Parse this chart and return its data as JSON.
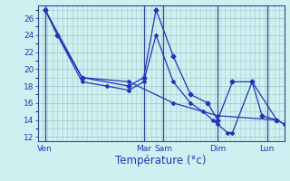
{
  "background_color": "#cff0f0",
  "grid_color": "#a0cccc",
  "line_color": "#2233bb",
  "ylim": [
    11.5,
    27.5
  ],
  "xlim": [
    0,
    100
  ],
  "yticks": [
    12,
    14,
    16,
    18,
    20,
    22,
    24,
    26
  ],
  "xlabel": "Température (°c)",
  "xlabel_fontsize": 8.5,
  "tick_fontsize": 6.5,
  "day_labels": [
    "Ven",
    "Mar",
    "Sam",
    "Dim",
    "Lun"
  ],
  "day_x": [
    3,
    43,
    51,
    73,
    93
  ],
  "vline_x": [
    3,
    43,
    51,
    73,
    93
  ],
  "series1_x": [
    3,
    8,
    18,
    37,
    43,
    48,
    55,
    62,
    69,
    73,
    79,
    87,
    91,
    97
  ],
  "series1_y": [
    27.0,
    24.0,
    19.0,
    18.0,
    19.0,
    27.0,
    21.5,
    17.0,
    16.0,
    14.0,
    18.5,
    18.5,
    14.5,
    14.0
  ],
  "series2_x": [
    3,
    8,
    18,
    28,
    37,
    43,
    48,
    55,
    62,
    67,
    71,
    73,
    77,
    79,
    87,
    97,
    100
  ],
  "series2_y": [
    27.0,
    24.0,
    18.5,
    18.0,
    17.5,
    18.5,
    24.0,
    18.5,
    16.0,
    15.0,
    14.0,
    13.5,
    12.5,
    12.5,
    18.5,
    14.0,
    13.5
  ],
  "series3_x": [
    3,
    18,
    37,
    55,
    73,
    97,
    100
  ],
  "series3_y": [
    27.0,
    19.0,
    18.5,
    16.0,
    14.5,
    14.0,
    13.5
  ]
}
